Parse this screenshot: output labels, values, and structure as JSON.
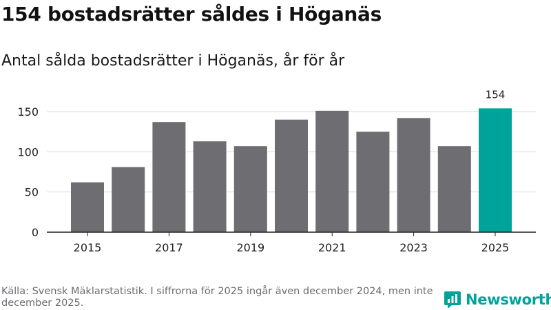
{
  "title": "154 bostadsrätter såldes i Höganäs",
  "subtitle": "Antal sålda bostadsrätter i Höganäs, år för år",
  "footer": "Källa: Svensk Mäklarstatistik. I siffrorna för 2025 ingår även december 2024, men inte december 2025.",
  "brand": {
    "name": "Newsworthy",
    "icon": "newsworthy-logo-icon",
    "color": "#00a39a"
  },
  "colors": {
    "bar": "#6e6d72",
    "highlight": "#00a39a",
    "grid": "#d9d9d9",
    "axis": "#222222"
  },
  "chart_data": {
    "type": "bar",
    "categories": [
      "2015",
      "2016",
      "2017",
      "2018",
      "2019",
      "2020",
      "2021",
      "2022",
      "2023",
      "2024",
      "2025"
    ],
    "values": [
      62,
      81,
      137,
      113,
      107,
      140,
      151,
      125,
      142,
      107,
      154
    ],
    "x_tick_labels": [
      "2015",
      "2017",
      "2019",
      "2021",
      "2023",
      "2025"
    ],
    "y_ticks": [
      0,
      50,
      100,
      150
    ],
    "ylim": [
      0,
      160
    ],
    "highlight_index": 10,
    "data_labels": [
      {
        "index": 10,
        "text": "154"
      }
    ],
    "grid": true,
    "xlabel": "",
    "ylabel": ""
  }
}
